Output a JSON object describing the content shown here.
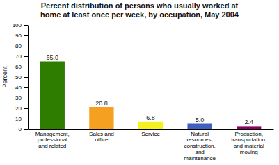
{
  "chart_data": {
    "type": "bar",
    "title": "Percent distribution of persons who usually worked at\nhome at least once per week, by occupation, May 2004",
    "categories": [
      "Management,\nprofessional\nand related",
      "Sales and\noffice",
      "Service",
      "Natural\nresources,\nconstruction,\nand\nmaintenance",
      "Production,\ntransportation,\nand material\nmoving"
    ],
    "values": [
      65.0,
      20.8,
      6.8,
      5.0,
      2.4
    ],
    "value_labels": [
      "65.0",
      "20.8",
      "6.8",
      "5.0",
      "2.4"
    ],
    "colors": [
      "#2e7d00",
      "#f5a020",
      "#f5f020",
      "#4060c0",
      "#8b0060"
    ],
    "ylabel": "Percent",
    "ylim": [
      0,
      100
    ],
    "yticks": [
      0,
      10,
      20,
      30,
      40,
      50,
      60,
      70,
      80,
      90,
      100
    ],
    "data_labels": true,
    "grid": false
  }
}
